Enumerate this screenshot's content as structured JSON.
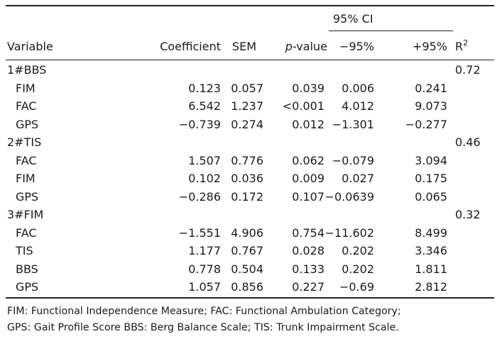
{
  "table": {
    "ci_group_label": "95% CI",
    "headers": {
      "variable": "Variable",
      "coefficient": "Coefficient",
      "sem": "SEM",
      "p_italic": "p",
      "p_rest": "-value",
      "ci_low": "−95%",
      "ci_high": "+95%",
      "r2_base": "R",
      "r2_sup": "2"
    },
    "groups": [
      {
        "label": "1#BBS",
        "r2": "0.72",
        "rows": [
          {
            "variable": "FIM",
            "coefficient": "0.123",
            "sem": "0.057",
            "p": "0.039",
            "ci_low": "0.006",
            "ci_high": "0.241"
          },
          {
            "variable": "FAC",
            "coefficient": "6.542",
            "sem": "1.237",
            "p": "<0.001",
            "ci_low": "4.012",
            "ci_high": "9.073"
          },
          {
            "variable": "GPS",
            "coefficient": "−0.739",
            "sem": "0.274",
            "p": "0.012",
            "ci_low": "−1.301",
            "ci_high": "−0.277"
          }
        ]
      },
      {
        "label": "2#TIS",
        "r2": "0.46",
        "rows": [
          {
            "variable": "FAC",
            "coefficient": "1.507",
            "sem": "0.776",
            "p": "0.062",
            "ci_low": "−0.079",
            "ci_high": "3.094"
          },
          {
            "variable": "FIM",
            "coefficient": "0.102",
            "sem": "0.036",
            "p": "0.009",
            "ci_low": "0.027",
            "ci_high": "0.175"
          },
          {
            "variable": "GPS",
            "coefficient": "−0.286",
            "sem": "0.172",
            "p": "0.107",
            "ci_low": "−0.0639",
            "ci_high": "0.065"
          }
        ]
      },
      {
        "label": "3#FIM",
        "r2": "0.32",
        "rows": [
          {
            "variable": "FAC",
            "coefficient": "−1.551",
            "sem": "4.906",
            "p": "0.754",
            "ci_low": "−11.602",
            "ci_high": "8.499"
          },
          {
            "variable": "TIS",
            "coefficient": "1.177",
            "sem": "0.767",
            "p": "0.028",
            "ci_low": "0.202",
            "ci_high": "3.346"
          },
          {
            "variable": "BBS",
            "coefficient": "0.778",
            "sem": "0.504",
            "p": "0.133",
            "ci_low": "0.202",
            "ci_high": "1.811"
          },
          {
            "variable": "GPS",
            "coefficient": "1.057",
            "sem": "0.856",
            "p": "0.227",
            "ci_low": "−0.69",
            "ci_high": "2.812"
          }
        ]
      }
    ]
  },
  "footnote": {
    "line1": "FIM: Functional Independence Measure; FAC: Functional Ambulation Category;",
    "line2": "GPS: Gait Profile Score BBS: Berg Balance Scale; TIS: Trunk Impairment Scale."
  }
}
